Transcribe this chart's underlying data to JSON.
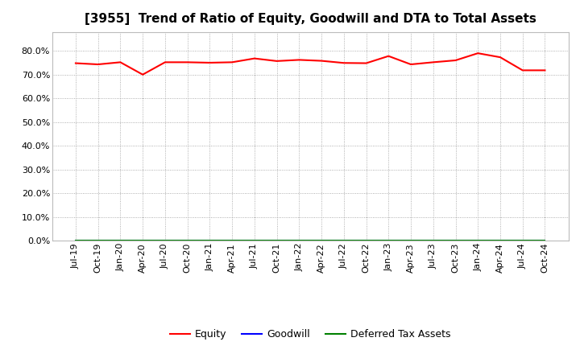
{
  "title": "[3955]  Trend of Ratio of Equity, Goodwill and DTA to Total Assets",
  "x_labels": [
    "Jul-19",
    "Oct-19",
    "Jan-20",
    "Apr-20",
    "Jul-20",
    "Oct-20",
    "Jan-21",
    "Apr-21",
    "Jul-21",
    "Oct-21",
    "Jan-22",
    "Apr-22",
    "Jul-22",
    "Oct-22",
    "Jan-23",
    "Apr-23",
    "Jul-23",
    "Oct-23",
    "Jan-24",
    "Apr-24",
    "Jul-24",
    "Oct-24"
  ],
  "equity": [
    0.748,
    0.743,
    0.752,
    0.7,
    0.752,
    0.752,
    0.75,
    0.752,
    0.768,
    0.757,
    0.762,
    0.758,
    0.749,
    0.748,
    0.778,
    0.743,
    0.752,
    0.76,
    0.79,
    0.773,
    0.718,
    0.718
  ],
  "goodwill": [
    0.0,
    0.0,
    0.0,
    0.0,
    0.0,
    0.0,
    0.0,
    0.0,
    0.0,
    0.0,
    0.0,
    0.0,
    0.0,
    0.0,
    0.0,
    0.0,
    0.0,
    0.0,
    0.0,
    0.0,
    0.0,
    0.0
  ],
  "dta": [
    0.0,
    0.0,
    0.0,
    0.0,
    0.0,
    0.0,
    0.0,
    0.0,
    0.0,
    0.0,
    0.0,
    0.0,
    0.0,
    0.0,
    0.0,
    0.0,
    0.0,
    0.0,
    0.0,
    0.0,
    0.0,
    0.0
  ],
  "equity_color": "#ff0000",
  "goodwill_color": "#0000ff",
  "dta_color": "#008000",
  "background_color": "#ffffff",
  "plot_bg_color": "#ffffff",
  "grid_color": "#999999",
  "ylim": [
    0.0,
    0.88
  ],
  "yticks": [
    0.0,
    0.1,
    0.2,
    0.3,
    0.4,
    0.5,
    0.6,
    0.7,
    0.8
  ],
  "title_fontsize": 11,
  "tick_fontsize": 8,
  "legend_labels": [
    "Equity",
    "Goodwill",
    "Deferred Tax Assets"
  ]
}
